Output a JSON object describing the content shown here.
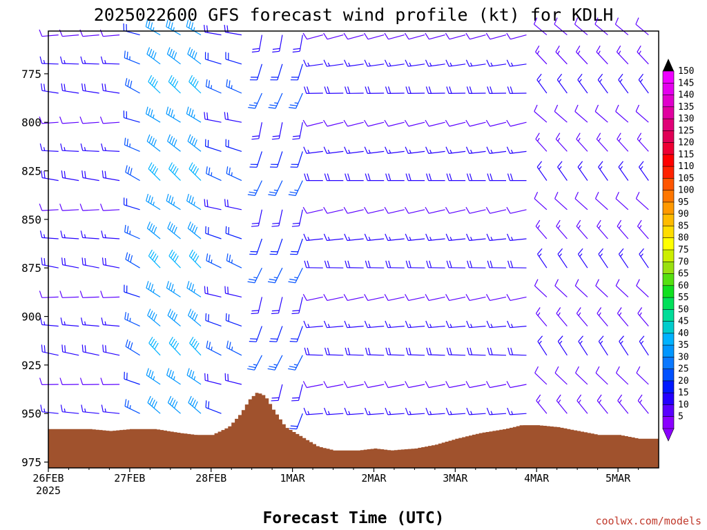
{
  "title": "2025022600 GFS forecast wind profile (kt) for KDLH",
  "xlabel": "Forecast Time (UTC)",
  "watermark": "coolwx.com/models",
  "colors": {
    "terrain": "#a0522d",
    "frame": "#000000"
  },
  "chart_data": {
    "type": "wind_barb_time_height",
    "title": "2025022600 GFS forecast wind profile (kt) for KDLH",
    "xlabel": "Forecast Time (UTC)",
    "ylabel": "",
    "x_ticks": [
      "26FEB",
      "27FEB",
      "28FEB",
      "1MAR",
      "2MAR",
      "3MAR",
      "4MAR",
      "5MAR"
    ],
    "x_tick_sublabel": "2025",
    "x_range_days": [
      0,
      7.5
    ],
    "y_ticks": [
      775,
      800,
      825,
      850,
      875,
      900,
      925,
      950,
      975
    ],
    "y_range_hpa": [
      753,
      978
    ],
    "speed_colorbar": {
      "levels": [
        5,
        10,
        15,
        20,
        25,
        30,
        35,
        40,
        45,
        50,
        55,
        60,
        65,
        70,
        75,
        80,
        85,
        90,
        95,
        100,
        105,
        110,
        115,
        120,
        125,
        130,
        135,
        140,
        145,
        150
      ],
      "colors": [
        "#8a00ff",
        "#5a00ff",
        "#2400ff",
        "#0018ff",
        "#0050ff",
        "#0a78ff",
        "#0096ff",
        "#00b2ff",
        "#00cccc",
        "#00dd99",
        "#00e05a",
        "#10e020",
        "#55e010",
        "#99e010",
        "#ccee00",
        "#ffff00",
        "#ffdd00",
        "#ffbb00",
        "#ff9900",
        "#ff7700",
        "#ff5500",
        "#ff2200",
        "#ff0000",
        "#ee0033",
        "#e00055",
        "#e00077",
        "#e000a0",
        "#e000cc",
        "#e400ee",
        "#ee00ff"
      ]
    },
    "terrain_surface_hpa": [
      {
        "day": 0.0,
        "p": 958
      },
      {
        "day": 0.5,
        "p": 958
      },
      {
        "day": 0.75,
        "p": 959
      },
      {
        "day": 1.0,
        "p": 958
      },
      {
        "day": 1.3,
        "p": 958
      },
      {
        "day": 1.6,
        "p": 960
      },
      {
        "day": 1.8,
        "p": 961
      },
      {
        "day": 2.0,
        "p": 961
      },
      {
        "day": 2.2,
        "p": 957
      },
      {
        "day": 2.35,
        "p": 950
      },
      {
        "day": 2.45,
        "p": 943
      },
      {
        "day": 2.55,
        "p": 939
      },
      {
        "day": 2.65,
        "p": 941
      },
      {
        "day": 2.75,
        "p": 948
      },
      {
        "day": 2.9,
        "p": 957
      },
      {
        "day": 3.1,
        "p": 962
      },
      {
        "day": 3.3,
        "p": 967
      },
      {
        "day": 3.5,
        "p": 969
      },
      {
        "day": 3.8,
        "p": 969
      },
      {
        "day": 4.0,
        "p": 968
      },
      {
        "day": 4.2,
        "p": 969
      },
      {
        "day": 4.5,
        "p": 968
      },
      {
        "day": 4.75,
        "p": 966
      },
      {
        "day": 5.0,
        "p": 963
      },
      {
        "day": 5.3,
        "p": 960
      },
      {
        "day": 5.6,
        "p": 958
      },
      {
        "day": 5.8,
        "p": 956
      },
      {
        "day": 6.0,
        "p": 956
      },
      {
        "day": 6.25,
        "p": 957
      },
      {
        "day": 6.5,
        "p": 959
      },
      {
        "day": 6.75,
        "p": 961
      },
      {
        "day": 7.0,
        "p": 961
      },
      {
        "day": 7.25,
        "p": 963
      },
      {
        "day": 7.5,
        "p": 963
      }
    ],
    "barb_levels_hpa": [
      755,
      770,
      785,
      800,
      815,
      830,
      845,
      860,
      875,
      890,
      905,
      920,
      935,
      950,
      965
    ],
    "barb_step_hours": 6,
    "wind_phases": [
      {
        "from_day": 0.0,
        "to_day": 0.9,
        "dir_deg": 275,
        "speed_kt": 15
      },
      {
        "from_day": 0.9,
        "to_day": 1.3,
        "dir_deg": 295,
        "speed_kt": 25
      },
      {
        "from_day": 1.3,
        "to_day": 2.0,
        "dir_deg": 310,
        "speed_kt": 38
      },
      {
        "from_day": 2.0,
        "to_day": 2.6,
        "dir_deg": 290,
        "speed_kt": 22
      },
      {
        "from_day": 2.6,
        "to_day": 3.3,
        "dir_deg": 200,
        "speed_kt": 22
      },
      {
        "from_day": 3.3,
        "to_day": 5.9,
        "dir_deg": 265,
        "speed_kt": 15
      },
      {
        "from_day": 5.9,
        "to_day": 7.5,
        "dir_deg": 320,
        "speed_kt": 14
      }
    ]
  }
}
